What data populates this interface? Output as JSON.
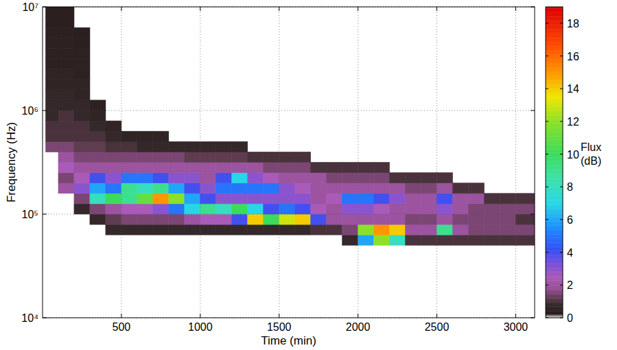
{
  "chart_data": {
    "type": "heatmap",
    "x_label": "Time (min)",
    "y_label": "Frequency (Hz)",
    "log": "y",
    "grid": true,
    "xlim": [
      0,
      3120
    ],
    "xticks": [
      500,
      1000,
      1500,
      2000,
      2500,
      3000
    ],
    "ylim": [
      10000,
      10000000
    ],
    "yticks": [
      {
        "value": 10000,
        "label": "10⁴"
      },
      {
        "value": 100000,
        "label": "10⁵"
      },
      {
        "value": 1000000,
        "label": "10⁶"
      },
      {
        "value": 10000000,
        "label": "10⁷"
      }
    ],
    "x_bins": [
      20,
      100,
      200,
      300,
      400,
      500,
      600,
      700,
      800,
      900,
      1000,
      1100,
      1200,
      1300,
      1400,
      1500,
      1600,
      1700,
      1800,
      1900,
      2000,
      2100,
      2200,
      2300,
      2400,
      2500,
      2600,
      2700,
      2800,
      2900,
      3000,
      3120
    ],
    "y_bins": [
      50119,
      63096,
      79433,
      100000,
      125893,
      158489,
      199526,
      251189,
      316228,
      398107,
      501187,
      630957,
      794328,
      1000000,
      1258925,
      1584893,
      1995262,
      2511886,
      3162278,
      3981072,
      5011872,
      6309573,
      7943282,
      10000000
    ],
    "cells": [
      [
        null,
        null,
        null,
        null,
        null,
        null,
        null,
        null,
        null,
        null,
        null,
        null,
        null,
        null,
        null,
        null,
        null,
        null,
        null,
        0.8,
        6,
        12,
        8,
        1,
        1,
        1,
        1,
        1,
        1,
        1,
        1
      ],
      [
        null,
        null,
        null,
        null,
        0.8,
        0.8,
        0.8,
        0.8,
        0.8,
        0.8,
        0.8,
        0.8,
        0.8,
        0.8,
        0.8,
        0.8,
        0.8,
        1,
        1,
        1.5,
        12,
        15,
        14,
        2,
        2,
        9,
        2,
        1.5,
        1.5,
        1.5,
        1.5
      ],
      [
        null,
        null,
        null,
        0.8,
        1.2,
        1.5,
        1.5,
        1.5,
        1.5,
        2,
        2.5,
        2.5,
        4,
        14,
        10,
        13,
        14,
        4,
        2,
        2,
        2,
        2,
        2,
        1.5,
        1.5,
        2,
        1.5,
        1.5,
        1.5,
        1.5,
        1
      ],
      [
        null,
        null,
        0.8,
        1.5,
        2,
        2.5,
        2.5,
        3,
        5,
        7,
        9,
        8,
        10,
        7,
        4,
        5,
        4,
        2.5,
        2,
        3,
        3,
        2.5,
        2,
        2,
        2,
        3,
        2,
        1.5,
        1.5,
        1.5,
        1.5
      ],
      [
        null,
        null,
        1.5,
        8,
        10,
        9,
        11,
        15,
        12,
        6,
        4,
        3,
        3,
        3,
        3,
        3,
        3,
        2,
        2.5,
        5,
        5,
        4,
        3,
        2,
        2,
        4,
        2,
        2,
        1,
        1,
        1
      ],
      [
        null,
        2,
        3,
        6,
        5,
        9,
        8,
        9,
        6,
        4,
        3,
        5,
        5,
        5,
        5,
        3,
        2.5,
        2,
        2,
        2,
        2,
        2,
        2,
        1.5,
        1.5,
        2,
        1,
        1,
        null,
        null,
        null
      ],
      [
        null,
        1.5,
        2.5,
        4,
        3,
        5,
        5,
        4,
        3,
        3,
        2,
        4,
        7,
        3,
        2.5,
        2,
        2,
        2,
        1.5,
        1.5,
        1.5,
        1.5,
        1,
        1,
        1,
        1,
        null,
        null,
        null,
        null,
        null
      ],
      [
        null,
        2.5,
        2,
        2,
        2,
        2,
        2,
        2,
        2,
        2,
        2,
        2,
        2,
        2,
        1.5,
        1.5,
        1.5,
        1,
        1,
        1,
        1,
        1,
        null,
        null,
        null,
        null,
        null,
        null,
        null,
        null,
        null
      ],
      [
        null,
        2,
        1.5,
        1.5,
        1.5,
        1.5,
        1.5,
        1.5,
        1.5,
        1.2,
        1.2,
        1.2,
        1.2,
        1,
        1,
        1,
        1,
        null,
        null,
        null,
        null,
        null,
        null,
        null,
        null,
        null,
        null,
        null,
        null,
        null,
        null
      ],
      [
        1.5,
        1.5,
        1.2,
        1.2,
        1,
        1,
        0.8,
        0.8,
        0.8,
        0.8,
        0.8,
        0.8,
        0.8,
        null,
        null,
        null,
        null,
        null,
        null,
        null,
        null,
        null,
        null,
        null,
        null,
        null,
        null,
        null,
        null,
        null,
        null
      ],
      [
        1,
        1,
        1,
        1,
        0.8,
        0.6,
        0.6,
        0.6,
        null,
        null,
        null,
        null,
        null,
        null,
        null,
        null,
        null,
        null,
        null,
        null,
        null,
        null,
        null,
        null,
        null,
        null,
        null,
        null,
        null,
        null,
        null
      ],
      [
        1,
        1,
        1,
        0.8,
        0.6,
        null,
        null,
        null,
        null,
        null,
        null,
        null,
        null,
        null,
        null,
        null,
        null,
        null,
        null,
        null,
        null,
        null,
        null,
        null,
        null,
        null,
        null,
        null,
        null,
        null,
        null
      ],
      [
        0.8,
        1,
        0.8,
        0.6,
        null,
        null,
        null,
        null,
        null,
        null,
        null,
        null,
        null,
        null,
        null,
        null,
        null,
        null,
        null,
        null,
        null,
        null,
        null,
        null,
        null,
        null,
        null,
        null,
        null,
        null,
        null
      ],
      [
        0.8,
        0.8,
        0.8,
        0.5,
        null,
        null,
        null,
        null,
        null,
        null,
        null,
        null,
        null,
        null,
        null,
        null,
        null,
        null,
        null,
        null,
        null,
        null,
        null,
        null,
        null,
        null,
        null,
        null,
        null,
        null,
        null
      ],
      [
        0.8,
        0.8,
        0.6,
        null,
        null,
        null,
        null,
        null,
        null,
        null,
        null,
        null,
        null,
        null,
        null,
        null,
        null,
        null,
        null,
        null,
        null,
        null,
        null,
        null,
        null,
        null,
        null,
        null,
        null,
        null,
        null
      ],
      [
        0.6,
        0.6,
        0.6,
        null,
        null,
        null,
        null,
        null,
        null,
        null,
        null,
        null,
        null,
        null,
        null,
        null,
        null,
        null,
        null,
        null,
        null,
        null,
        null,
        null,
        null,
        null,
        null,
        null,
        null,
        null,
        null
      ],
      [
        0.6,
        0.6,
        0.5,
        null,
        null,
        null,
        null,
        null,
        null,
        null,
        null,
        null,
        null,
        null,
        null,
        null,
        null,
        null,
        null,
        null,
        null,
        null,
        null,
        null,
        null,
        null,
        null,
        null,
        null,
        null,
        null
      ],
      [
        0.5,
        0.5,
        0.5,
        null,
        null,
        null,
        null,
        null,
        null,
        null,
        null,
        null,
        null,
        null,
        null,
        null,
        null,
        null,
        null,
        null,
        null,
        null,
        null,
        null,
        null,
        null,
        null,
        null,
        null,
        null,
        null
      ],
      [
        0.5,
        0.5,
        0.5,
        null,
        null,
        null,
        null,
        null,
        null,
        null,
        null,
        null,
        null,
        null,
        null,
        null,
        null,
        null,
        null,
        null,
        null,
        null,
        null,
        null,
        null,
        null,
        null,
        null,
        null,
        null,
        null
      ],
      [
        0.5,
        0.5,
        0.4,
        null,
        null,
        null,
        null,
        null,
        null,
        null,
        null,
        null,
        null,
        null,
        null,
        null,
        null,
        null,
        null,
        null,
        null,
        null,
        null,
        null,
        null,
        null,
        null,
        null,
        null,
        null,
        null
      ],
      [
        0.5,
        0.5,
        0.4,
        null,
        null,
        null,
        null,
        null,
        null,
        null,
        null,
        null,
        null,
        null,
        null,
        null,
        null,
        null,
        null,
        null,
        null,
        null,
        null,
        null,
        null,
        null,
        null,
        null,
        null,
        null,
        null
      ],
      [
        0.4,
        0.4,
        null,
        null,
        null,
        null,
        null,
        null,
        null,
        null,
        null,
        null,
        null,
        null,
        null,
        null,
        null,
        null,
        null,
        null,
        null,
        null,
        null,
        null,
        null,
        null,
        null,
        null,
        null,
        null,
        null
      ],
      [
        0.4,
        0.4,
        null,
        null,
        null,
        null,
        null,
        null,
        null,
        null,
        null,
        null,
        null,
        null,
        null,
        null,
        null,
        null,
        null,
        null,
        null,
        null,
        null,
        null,
        null,
        null,
        null,
        null,
        null,
        null,
        null
      ]
    ],
    "colorbar": {
      "label": "Flux (dB)",
      "lim": [
        0,
        19
      ],
      "ticks": [
        0,
        2,
        4,
        6,
        8,
        10,
        12,
        14,
        16,
        18
      ]
    }
  }
}
